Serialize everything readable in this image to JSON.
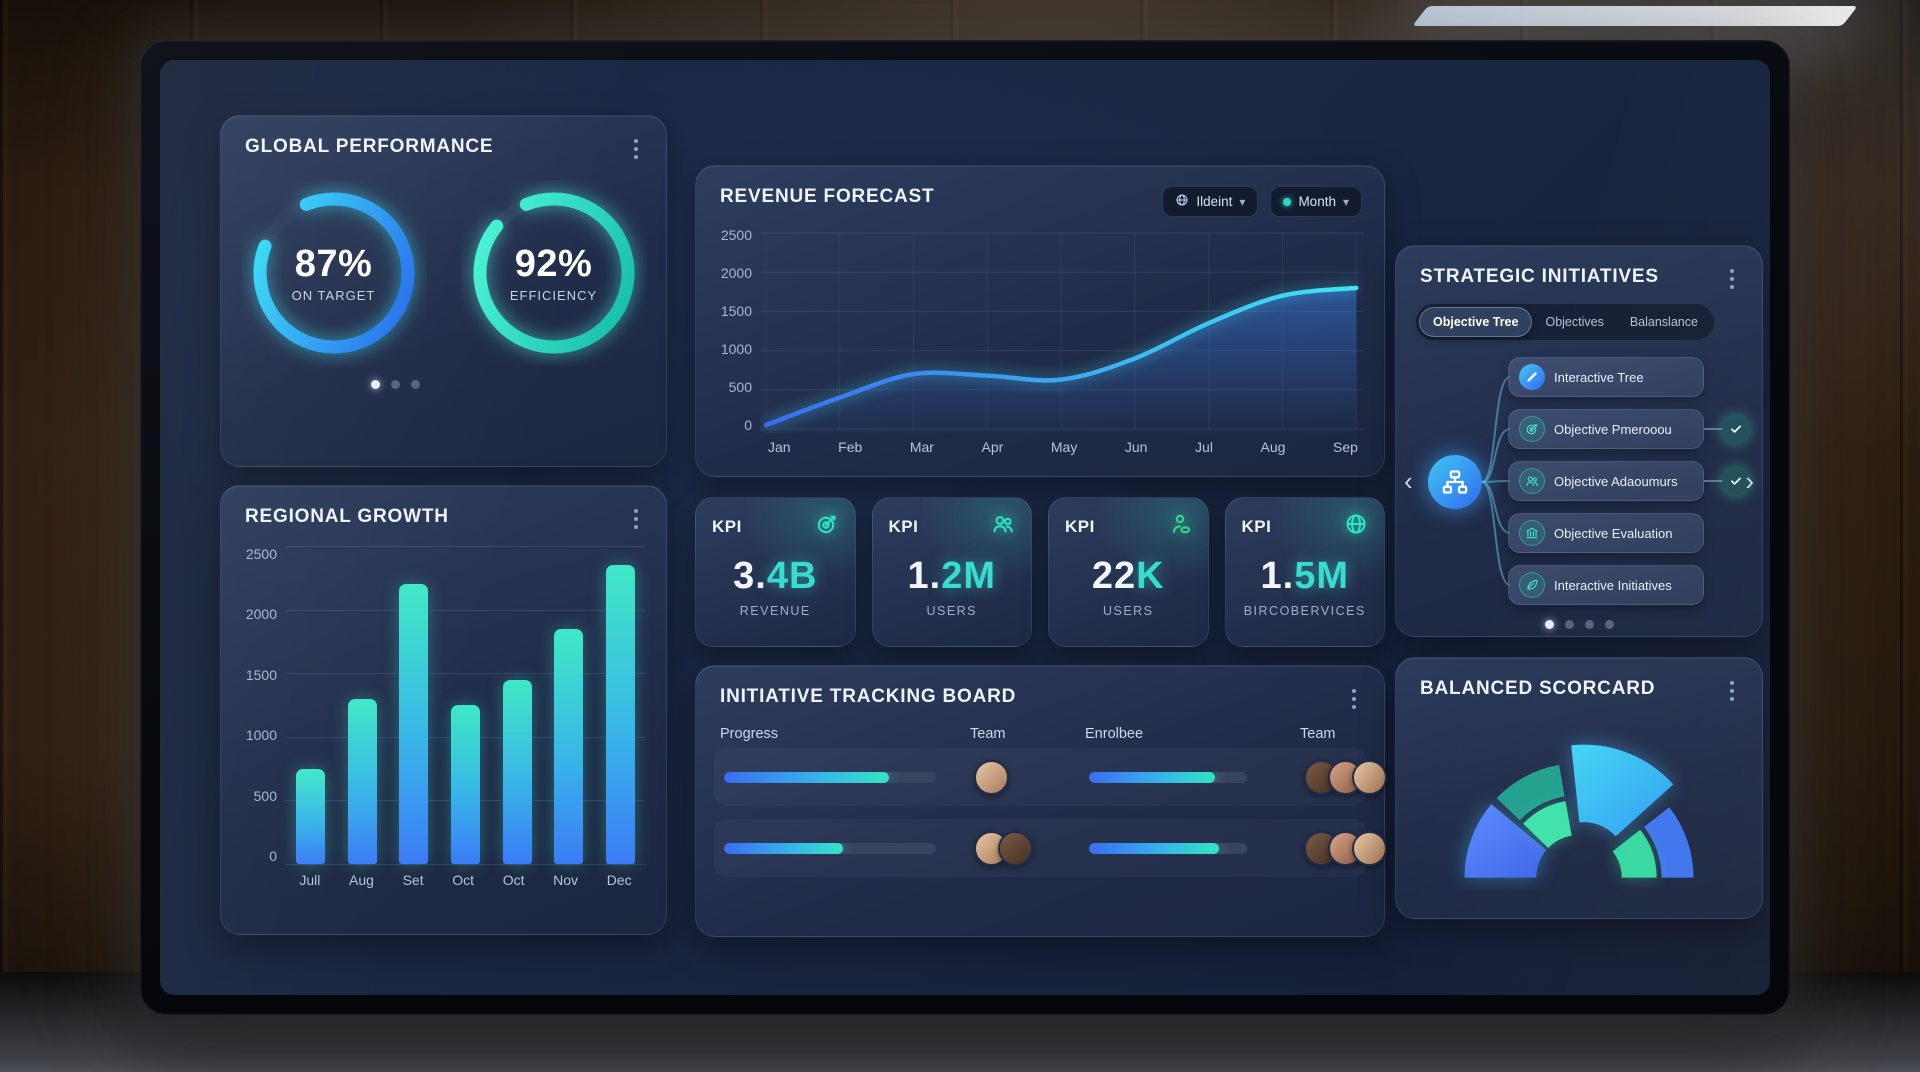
{
  "global_performance": {
    "title": "GLOBAL PERFORMANCE",
    "donuts": [
      {
        "value": 87,
        "display": "87%",
        "label": "ON TARGET",
        "colors": [
          "#2563eb",
          "#38e8f8"
        ]
      },
      {
        "value": 92,
        "display": "92%",
        "label": "EFFICIENCY",
        "colors": [
          "#14b8a6",
          "#4efadd"
        ]
      }
    ],
    "pagination": {
      "count": 3,
      "active": 0
    }
  },
  "regional_growth": {
    "title": "REGIONAL GROWTH"
  },
  "revenue_forecast": {
    "title": "REVENUE FORECAST",
    "filters": [
      {
        "label": "Ildeint",
        "icon": "globe-icon"
      },
      {
        "label": "Month",
        "dot_color": "#2dd9c6"
      }
    ]
  },
  "kpis": [
    {
      "heading": "KPI",
      "icon": "target-icon",
      "icon_color": "#2ee6c3",
      "value_main": "3.",
      "value_accent": "4B",
      "caption": "REVENUE"
    },
    {
      "heading": "KPI",
      "icon": "users-icon",
      "icon_color": "#2ee6c3",
      "value_main": "1.",
      "value_accent": "2M",
      "caption": "USERS"
    },
    {
      "heading": "KPI",
      "icon": "user-badge-icon",
      "icon_color": "#35d98d",
      "value_main": "22",
      "value_accent": "K",
      "caption": "USERS"
    },
    {
      "heading": "KPI",
      "icon": "globe-icon",
      "icon_color": "#2ee6c3",
      "value_main": "1.",
      "value_accent": "5M",
      "caption": "BIRCOBERVICES"
    }
  ],
  "tracking_board": {
    "title": "INITIATIVE TRACKING BOARD",
    "columns": [
      "Progress",
      "Team",
      "Enrolbee",
      "Team"
    ],
    "rows": [
      {
        "progress": 78,
        "team_count": 1,
        "enrollee_progress": 80,
        "team2_count": 3
      },
      {
        "progress": 56,
        "team_count": 2,
        "enrollee_progress": 82,
        "team2_count": 3
      }
    ]
  },
  "strategic_initiatives": {
    "title": "STRATEGIC INITIATIVES",
    "tabs": [
      {
        "label": "Objective Tree",
        "active": true
      },
      {
        "label": "Objectives",
        "active": false
      },
      {
        "label": "Balanslance",
        "active": false
      }
    ],
    "nodes": [
      {
        "label": "Interactive Tree",
        "icon": "pencil-icon",
        "style": "blue",
        "checked": false
      },
      {
        "label": "Objective Pmerooou",
        "icon": "target-icon",
        "style": "teal",
        "checked": true
      },
      {
        "label": "Objective Adaoumurs",
        "icon": "users-icon",
        "style": "teal",
        "checked": true
      },
      {
        "label": "Objective Evaluation",
        "icon": "bank-icon",
        "style": "teal",
        "checked": false
      },
      {
        "label": "Interactive Initiatives",
        "icon": "leaf-icon",
        "style": "teal",
        "checked": false
      }
    ],
    "pagination": {
      "count": 4,
      "active": 0
    }
  },
  "balanced_scorecard": {
    "title": "BALANCED SCORCARD"
  },
  "chart_data": [
    {
      "id": "revenue_forecast",
      "type": "area",
      "title": "REVENUE FORECAST",
      "x": [
        "Jan",
        "Feb",
        "Mar",
        "Apr",
        "May",
        "Jun",
        "Jul",
        "Aug",
        "Sep"
      ],
      "values": [
        50,
        400,
        700,
        680,
        630,
        900,
        1350,
        1700,
        1800
      ],
      "ylim": [
        0,
        2500
      ],
      "yticks": [
        2500,
        2000,
        1500,
        1000,
        500,
        0
      ],
      "grid": true,
      "legend": "none",
      "line_colors": [
        "#3b6cf0",
        "#3fe5f0"
      ],
      "fill_color_top": "rgba(59,130,246,0.45)",
      "fill_color_bottom": "rgba(59,130,246,0.02)"
    },
    {
      "id": "regional_growth",
      "type": "bar",
      "title": "REGIONAL GROWTH",
      "categories": [
        "Jull",
        "Aug",
        "Set",
        "Oct",
        "Oct",
        "Nov",
        "Dec"
      ],
      "values": [
        750,
        1300,
        2200,
        1250,
        1450,
        1850,
        2350
      ],
      "ylim": [
        0,
        2500
      ],
      "yticks": [
        2500,
        2000,
        1500,
        1000,
        500,
        0
      ],
      "grid": true,
      "legend": "none"
    },
    {
      "id": "global_performance",
      "type": "donut",
      "series": [
        {
          "name": "ON TARGET",
          "value": 87
        },
        {
          "name": "EFFICIENCY",
          "value": 92
        }
      ]
    },
    {
      "id": "balanced_scorecard",
      "type": "gauge",
      "segments": [
        {
          "from": 180,
          "to": 140,
          "colors": [
            "#5d8bff",
            "#3f66e8"
          ]
        },
        {
          "from": 136,
          "to": 100,
          "outer_color": "#23a08f",
          "inner_color": "#3fe3a9"
        },
        {
          "from": 96,
          "to": 42,
          "colors": [
            "#45d4f5",
            "#2e9ef2"
          ],
          "pullout": 14
        },
        {
          "from": 38,
          "to": 0,
          "outer_color": "#3f74ee",
          "inner_color": "#36d9a0"
        }
      ]
    }
  ]
}
